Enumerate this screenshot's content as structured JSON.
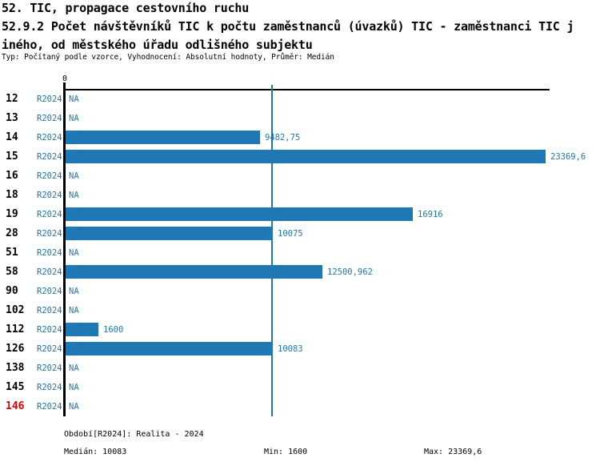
{
  "header": {
    "line1": "52. TIC, propagace cestovního ruchu",
    "line2": "52.9.2 Počet návštěvníků TIC k počtu zaměstnanců (úvazků) TIC - zaměstnanci TIC j",
    "line3": "iného, od městského úřadu odlišného subjektu",
    "meta": "Typ: Počítaný podle vzorce, Vyhodnocení: Absolutní hodnoty, Průměr: Medián"
  },
  "colors": {
    "bar_blue": "#1f77b4",
    "text_blue": "#1f77b4",
    "axis_black": "#000000",
    "highlight_red": "#e00000"
  },
  "chart_data": {
    "type": "bar",
    "orientation": "horizontal",
    "title": "52.9.2 Počet návštěvníků TIC k počtu zaměstnanců (úvazků) TIC - zaměstnanci TIC jiného, od městského úřadu odlišného subjektu",
    "axis_zero_label": "0",
    "period_label": "R2024",
    "categories": [
      "12",
      "13",
      "14",
      "15",
      "16",
      "18",
      "19",
      "28",
      "51",
      "58",
      "90",
      "102",
      "112",
      "126",
      "138",
      "145",
      "146"
    ],
    "values": [
      null,
      null,
      9482.75,
      23369.6,
      null,
      null,
      16916,
      10075,
      null,
      12500.962,
      null,
      null,
      1600,
      10083,
      null,
      null,
      null
    ],
    "value_labels": [
      "NA",
      "NA",
      "9482,75",
      "23369,6",
      "NA",
      "NA",
      "16916",
      "10075",
      "NA",
      "12500,962",
      "NA",
      "NA",
      "1600",
      "10083",
      "NA",
      "NA",
      "NA"
    ],
    "na_label": "NA",
    "xlim": [
      0,
      23369.6
    ],
    "median": 10083,
    "min": 1600,
    "max": 23369.6,
    "highlighted_category": "146",
    "grid": false,
    "legend": false
  },
  "footer": {
    "period": "Období[R2024]: Realita - 2024",
    "median": "Medián: 10083",
    "min": "Min: 1600",
    "max": "Max: 23369,6"
  }
}
